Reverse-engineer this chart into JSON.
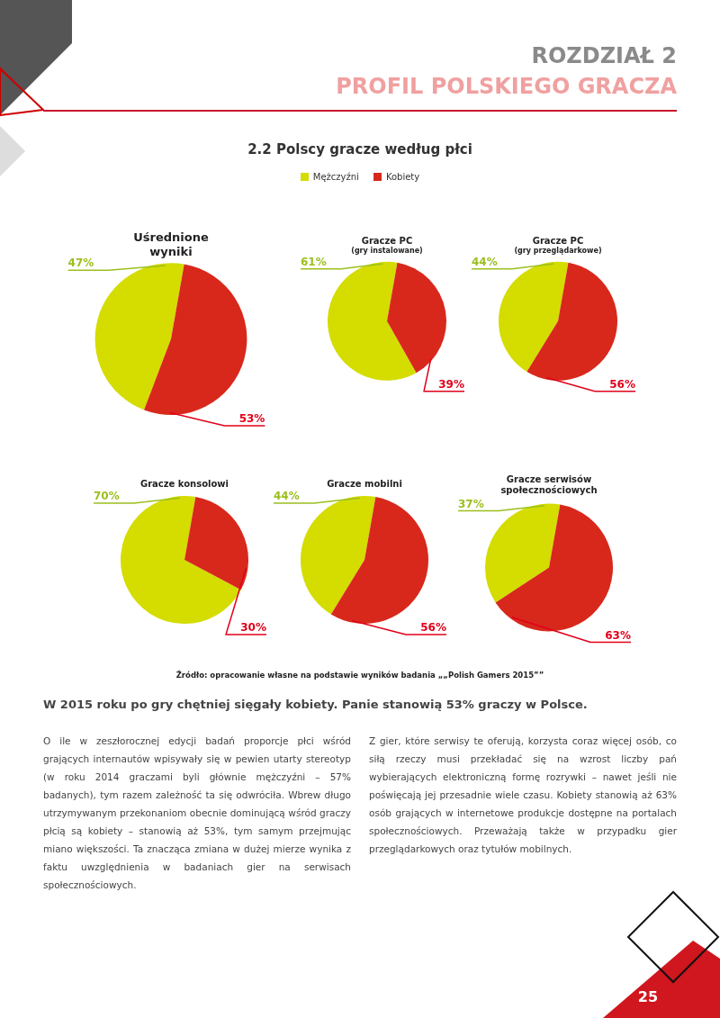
{
  "chart_data": [
    {
      "type": "other",
      "title": "ROZDZIAŁ 2",
      "subtitle": "PROFIL POLSKIEGO GRACZA",
      "annotations": [
        "2.2 Polscy gracze według płci"
      ]
    },
    {
      "type": "pie",
      "title": "Uśrednione wyniki",
      "categories": [
        "Mężczyźni",
        "Kobiety"
      ],
      "values": [
        47,
        53
      ],
      "colors": [
        "#d4dc00",
        "#d8281c"
      ],
      "value_labels": [
        "47%",
        "53%"
      ],
      "legend": "top"
    },
    {
      "type": "pie",
      "title": "Gracze PC",
      "subtitle": "(gry instalowane)",
      "categories": [
        null,
        null
      ],
      "values": [
        61,
        39
      ],
      "colors": [
        "#d4dc00",
        "#d8281c"
      ],
      "value_labels": [
        "61%",
        "39%"
      ]
    },
    {
      "type": "pie",
      "title": "Gracze PC",
      "subtitle": "(gry przeglądarkowe)",
      "categories": [
        null,
        null
      ],
      "values": [
        44,
        56
      ],
      "colors": [
        "#d4dc00",
        "#d8281c"
      ],
      "value_labels": [
        "44%",
        "56%"
      ]
    },
    {
      "type": "pie",
      "title": "Gracze konsolowi",
      "categories": [
        null,
        null
      ],
      "values": [
        70,
        30
      ],
      "colors": [
        "#d4dc00",
        "#d8281c"
      ],
      "value_labels": [
        "70%",
        "30%"
      ]
    },
    {
      "type": "pie",
      "title": "Gracze mobilni",
      "categories": [
        null,
        null
      ],
      "values": [
        44,
        56
      ],
      "colors": [
        "#d4dc00",
        "#d8281c"
      ],
      "value_labels": [
        "44%",
        "56%"
      ]
    },
    {
      "type": "pie",
      "title": "Gracze serwisów społecznościowych",
      "categories": [
        null,
        null
      ],
      "values": [
        37,
        63
      ],
      "colors": [
        "#d4dc00",
        "#d8281c"
      ],
      "value_labels": [
        "37%",
        "63%"
      ]
    },
    {
      "type": "other",
      "annotations": [
        "Źródło: opracowanie własne na podstawie wyników badania „„Polish Gamers 2015””",
        "W 2015 roku po gry chętniej sięgały kobiety. Panie stanowią 53% graczy w Polsce.",
        "O ile w zeszłorocznej edycji badań proporcje płci wśród grających internautów wpisywały się w pewien utarty stereotyp (w roku 2014 graczami byli głównie mężczyźni – 57% badanych), tym razem zależność ta się odwróciła. Wbrew długo utrzymywanym przekonaniom obecnie dominującą wśród graczy płcią są kobiety – stanowią aż 53%, tym samym przejmując miano większości. Ta znacząca zmiana w dużej mierze wynika z faktu uwzględnienia w badaniach gier na serwisach społecznościowych.",
        "Z gier, które serwisy te oferują, korzysta coraz więcej osób, co siłą rzeczy musi przekładać się na wzrost liczby pań wybierających elektroniczną formę rozrywki – nawet jeśli nie poświęcają jej przesadnie wiele czasu. Kobiety stanowią aż 63% osób grających w internetowe produkcje dostępne na portalach społecznościowych. Przeważają także w przypadku gier przeglądarkowych oraz tytułów mobilnych.",
        "25"
      ]
    }
  ]
}
